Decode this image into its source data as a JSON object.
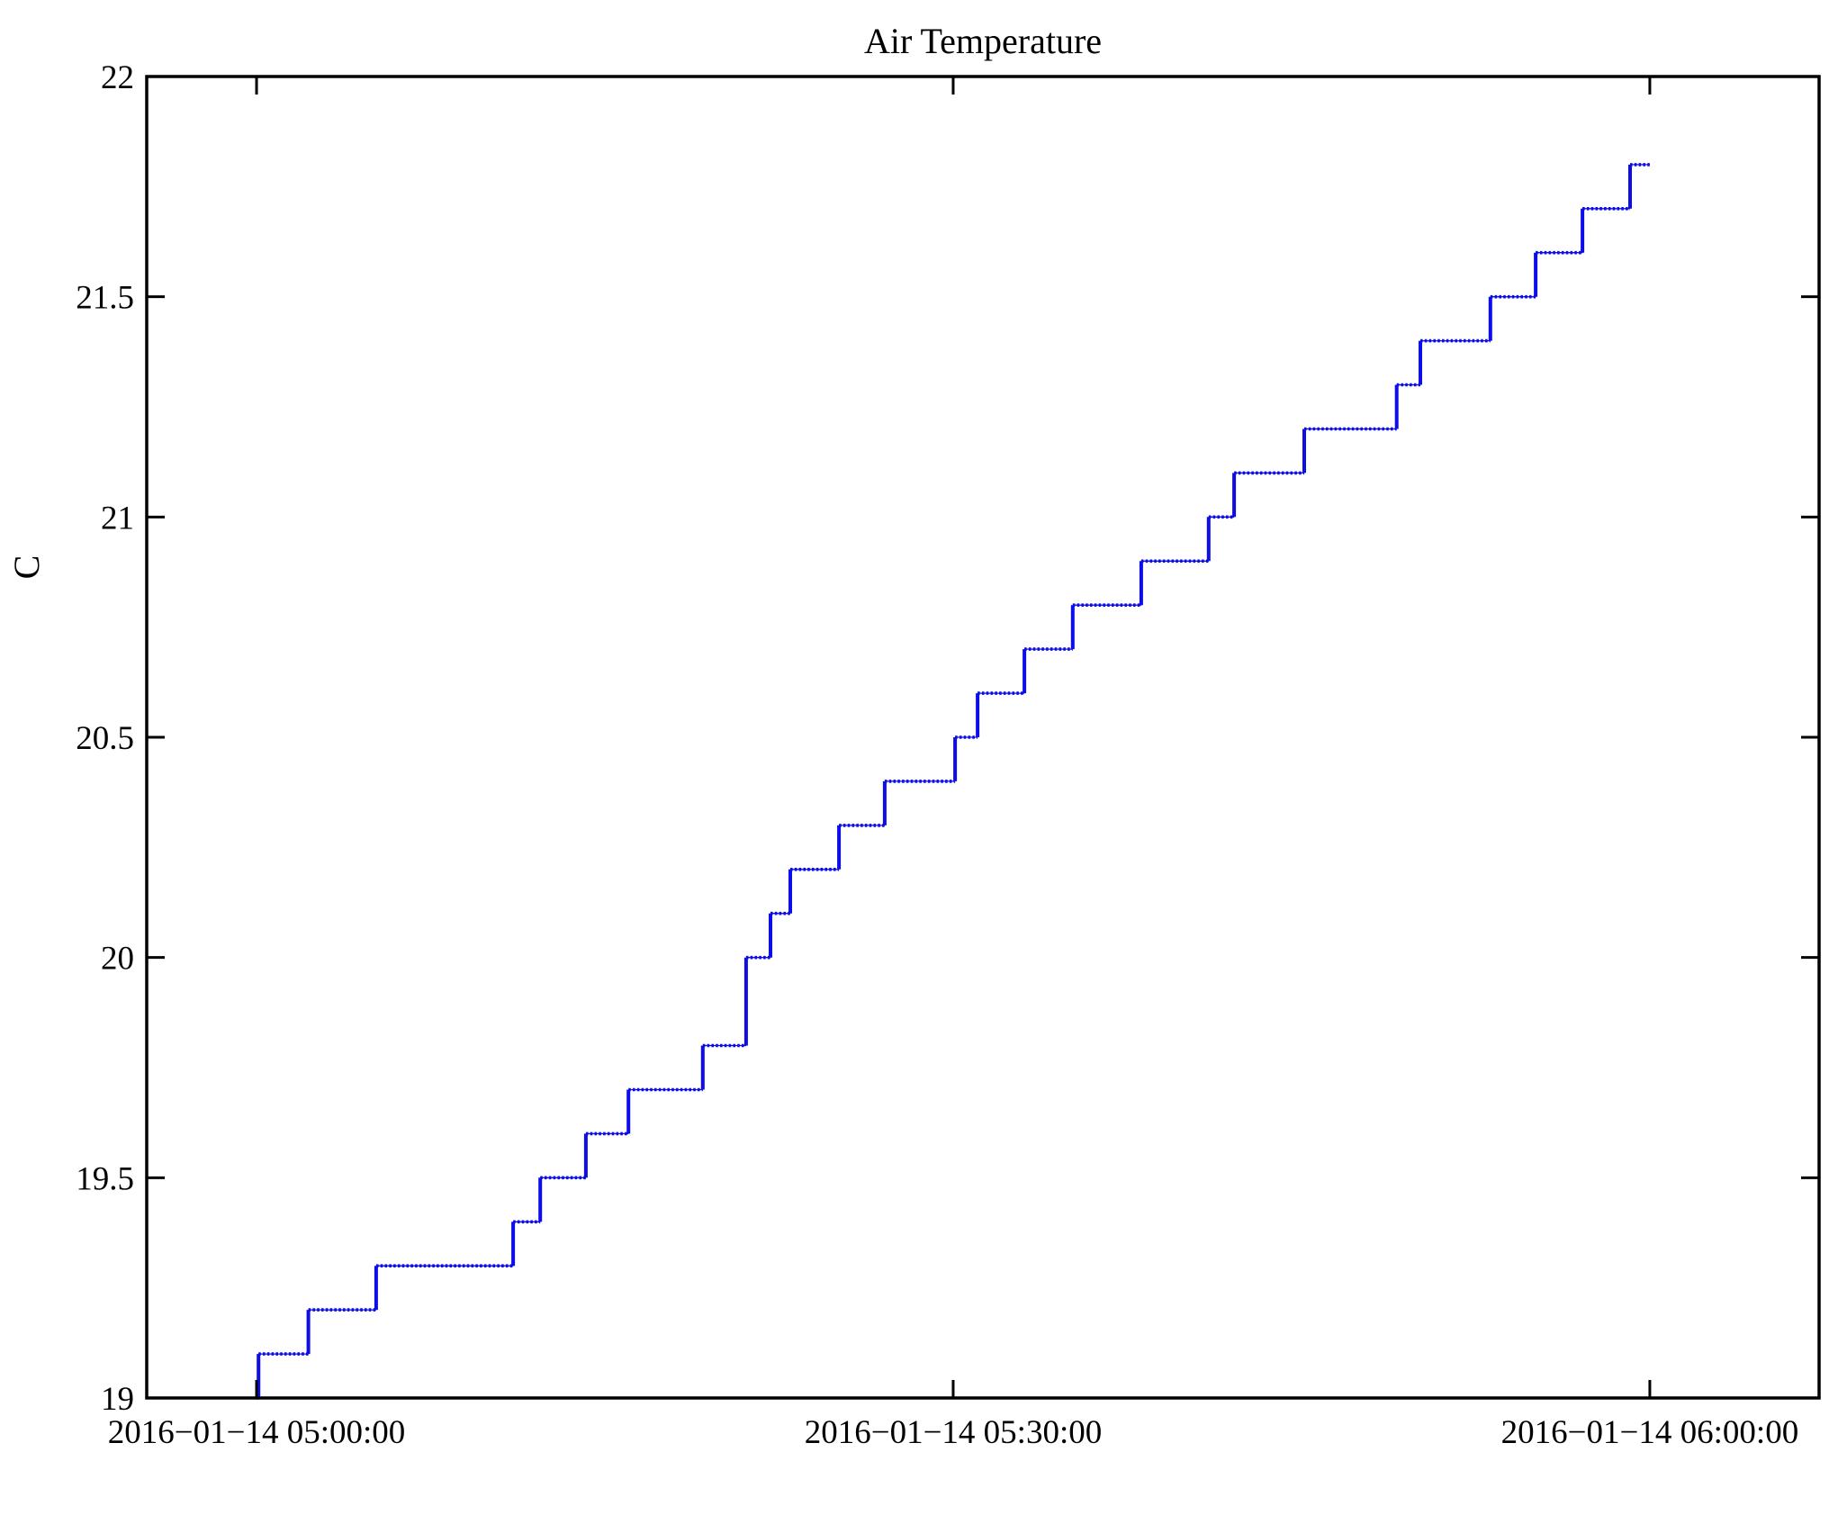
{
  "chart_data": {
    "type": "line",
    "subtype": "step",
    "title": "Air Temperature",
    "ylabel": "C",
    "xlabel": "",
    "grid": false,
    "legend": "none",
    "background": "#ffffff",
    "axis_color": "#000000",
    "line_color": "#0d0de8",
    "ylim": [
      19,
      22
    ],
    "yticks": [
      {
        "value": 19,
        "label": "19"
      },
      {
        "value": 19.5,
        "label": "19.5"
      },
      {
        "value": 20,
        "label": "20"
      },
      {
        "value": 20.5,
        "label": "20.5"
      },
      {
        "value": 21,
        "label": "21"
      },
      {
        "value": 21.5,
        "label": "21.5"
      },
      {
        "value": 22,
        "label": "22"
      }
    ],
    "xlim_minutes_after_0500": [
      -4.73,
      67.29
    ],
    "xticks": [
      {
        "time": "05:00:00",
        "label": "2016−01−14 05:00:00"
      },
      {
        "time": "05:30:00",
        "label": "2016−01−14 05:30:00"
      },
      {
        "time": "06:00:00",
        "label": "2016−01−14 06:00:00"
      }
    ],
    "series": [
      {
        "name": "air-temperature",
        "units": "C",
        "color": "#0d0de8",
        "step_points": [
          [
            "05:00:00",
            19.0
          ],
          [
            "05:00:05",
            19.1
          ],
          [
            "05:02:14",
            19.2
          ],
          [
            "05:05:09",
            19.3
          ],
          [
            "05:11:03",
            19.4
          ],
          [
            "05:12:13",
            19.5
          ],
          [
            "05:14:11",
            19.6
          ],
          [
            "05:16:01",
            19.7
          ],
          [
            "05:19:13",
            19.8
          ],
          [
            "05:21:05",
            20.0
          ],
          [
            "05:22:08",
            20.1
          ],
          [
            "05:22:59",
            20.2
          ],
          [
            "05:25:05",
            20.3
          ],
          [
            "05:27:03",
            20.4
          ],
          [
            "05:30:05",
            20.5
          ],
          [
            "05:31:03",
            20.6
          ],
          [
            "05:33:04",
            20.7
          ],
          [
            "05:35:09",
            20.8
          ],
          [
            "05:38:06",
            20.9
          ],
          [
            "05:41:00",
            21.0
          ],
          [
            "05:42:06",
            21.1
          ],
          [
            "05:45:07",
            21.2
          ],
          [
            "05:49:06",
            21.3
          ],
          [
            "05:50:07",
            21.4
          ],
          [
            "05:53:08",
            21.5
          ],
          [
            "05:55:05",
            21.6
          ],
          [
            "05:57:06",
            21.7
          ],
          [
            "05:59:09",
            21.8
          ],
          [
            "06:00:00",
            21.8
          ]
        ]
      }
    ]
  }
}
